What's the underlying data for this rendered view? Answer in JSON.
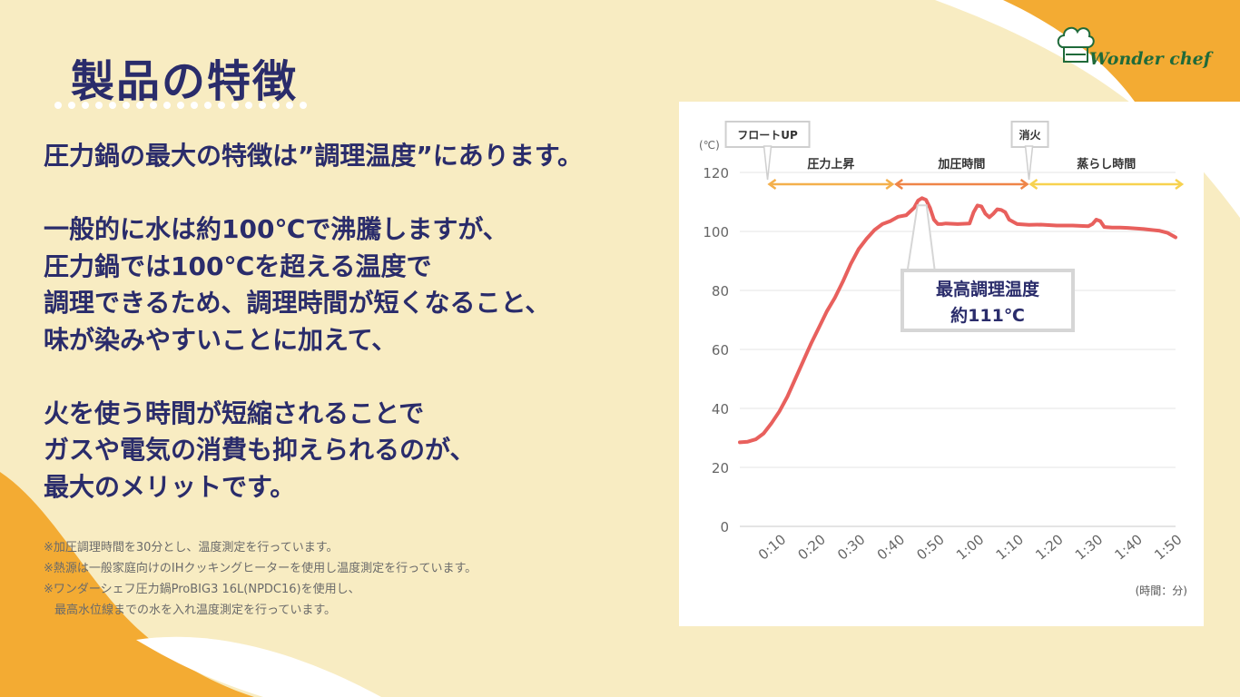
{
  "title": "製品の特徴",
  "body": {
    "lines": [
      "圧力鍋の最大の特徴は”調理温度”にあります。",
      "",
      "一般的に水は約100℃で沸騰しますが、",
      "圧力鍋では100℃を超える温度で",
      "調理できるため、調理時間が短くなること、",
      "味が染みやすいことに加えて、",
      "",
      "火を使う時間が短縮されることで",
      "ガスや電気の消費も抑えられるのが、",
      "最大のメリットです。"
    ]
  },
  "notes": [
    "※加圧調理時間を30分とし、温度測定を行っています。",
    "※熱源は一般家庭向けのIHクッキングヒーターを使用し温度測定を行っています。",
    "※ワンダーシェフ圧力鍋ProBIG3 16L(NPDC16)を使用し、",
    "最高水位線までの水を入れ温度測定を行っています。"
  ],
  "logo": {
    "text": "Wonder chef",
    "icon": "chef-hat-icon"
  },
  "colors": {
    "background": "#f8ecc2",
    "accent_orange": "#f3ab33",
    "navy": "#2a2c6b",
    "line": "#e8605d",
    "phase1": "#f4b04c",
    "phase2": "#ef8548",
    "phase3": "#f7d24f"
  },
  "chart_data": {
    "type": "line",
    "ylabel": "(℃)",
    "xlabel": "(時間：分)",
    "ylim": [
      0,
      120
    ],
    "yticks": [
      0,
      20,
      40,
      60,
      80,
      100,
      120
    ],
    "xticks": [
      "0:10",
      "0:20",
      "0:30",
      "0:40",
      "0:50",
      "1:00",
      "1:10",
      "1:20",
      "1:30",
      "1:40",
      "1:50"
    ],
    "xlim": [
      0,
      110
    ],
    "grid": true,
    "series": [
      {
        "x": [
          0,
          2,
          4,
          6,
          8,
          10,
          12,
          14,
          16,
          18,
          20,
          22,
          24,
          26,
          28,
          30,
          32,
          34,
          36,
          38,
          40,
          42,
          44,
          45,
          46,
          47,
          48,
          49,
          50,
          51,
          52,
          55,
          58,
          59,
          60,
          61,
          62,
          63,
          64,
          65,
          66,
          67,
          68,
          70,
          73,
          76,
          80,
          84,
          88,
          89,
          90,
          91,
          92,
          94,
          96,
          98,
          100,
          102,
          104,
          106,
          108,
          110
        ],
        "y": [
          28.5,
          28.7,
          29.5,
          31.5,
          35,
          39,
          44,
          50,
          56,
          62,
          67.5,
          73,
          77.5,
          83,
          89,
          94,
          97.5,
          100.5,
          102.5,
          103.5,
          105,
          105.5,
          108,
          110.5,
          111.3,
          110.7,
          108,
          104,
          102.5,
          102.5,
          102.7,
          102.5,
          102.7,
          106.5,
          108.8,
          108.5,
          106,
          104.8,
          106,
          107.5,
          107.3,
          106.5,
          104,
          102.5,
          102.2,
          102.3,
          102,
          102,
          101.8,
          102.5,
          104,
          103.5,
          101.5,
          101.3,
          101.3,
          101.2,
          101,
          100.8,
          100.5,
          100.2,
          99.5,
          98
        ]
      }
    ],
    "phases": [
      {
        "label": "圧力上昇",
        "start": 7,
        "end": 39
      },
      {
        "label": "加圧時間",
        "start": 39,
        "end": 73
      },
      {
        "label": "蒸らし時間",
        "start": 73,
        "end": 113
      }
    ],
    "markers": [
      {
        "label": "フロートUP",
        "x": 7
      },
      {
        "label": "消火",
        "x": 73
      }
    ],
    "annotation": {
      "lines": [
        "最高調理温度",
        "約111℃"
      ],
      "x": 46,
      "y": 111.3
    }
  }
}
